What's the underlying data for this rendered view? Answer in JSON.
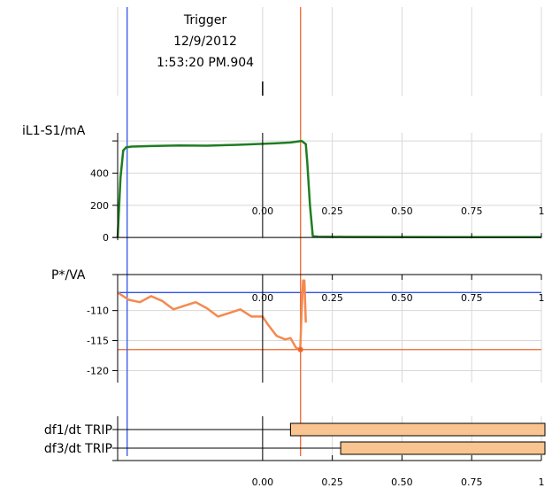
{
  "trigger": {
    "title": "Trigger",
    "date": "12/9/2012",
    "time": "1:53:20 PM.904"
  },
  "colors": {
    "cursor_blue": "#2f55e6",
    "cursor_orange": "#f0642a",
    "current_trace": "#1f7d22",
    "power_trace": "#f4894e",
    "trip_fill": "#f9c48f",
    "grid": "#d8d8d8"
  },
  "chart_data": [
    {
      "type": "line",
      "ylabel": "iL1-S1/mA",
      "xlim": [
        -0.52,
        1.0
      ],
      "ylim": [
        -10,
        650
      ],
      "yticks": [
        0,
        200,
        400
      ],
      "xticks": [
        "0.00",
        "0.25",
        "0.50",
        "0.75",
        "1"
      ],
      "grid": true,
      "series": [
        {
          "x": [
            -0.52,
            -0.51,
            -0.5,
            -0.49,
            -0.47,
            -0.4,
            -0.3,
            -0.2,
            -0.1,
            0.0,
            0.05,
            0.1,
            0.14,
            0.155,
            0.16,
            0.17,
            0.18,
            0.2,
            0.3,
            0.5,
            0.75,
            1.0
          ],
          "y": [
            0,
            370,
            540,
            560,
            565,
            568,
            572,
            570,
            575,
            582,
            585,
            590,
            600,
            580,
            470,
            200,
            8,
            5,
            4,
            3,
            2,
            2
          ]
        }
      ]
    },
    {
      "type": "line",
      "ylabel": "P*/VA",
      "xlim": [
        -0.52,
        1.0
      ],
      "ylim": [
        -122,
        -104
      ],
      "yticks": [
        -110,
        -115,
        -120
      ],
      "xticks": [
        "0.00",
        "0.25",
        "0.50",
        "0.75",
        "1"
      ],
      "grid": true,
      "cursor_levels": [
        -107.0,
        -116.5
      ],
      "series": [
        {
          "x": [
            -0.52,
            -0.48,
            -0.44,
            -0.4,
            -0.36,
            -0.32,
            -0.28,
            -0.24,
            -0.2,
            -0.16,
            -0.12,
            -0.08,
            -0.04,
            0.0,
            0.02,
            0.05,
            0.08,
            0.1,
            0.12,
            0.135,
            0.14,
            0.145,
            0.15,
            0.155
          ],
          "y": [
            -107.0,
            -108.2,
            -108.6,
            -107.6,
            -108.4,
            -109.8,
            -109.2,
            -108.6,
            -109.6,
            -111.0,
            -110.4,
            -109.8,
            -111.0,
            -111.0,
            -112.4,
            -114.2,
            -114.8,
            -114.6,
            -116.2,
            -116.5,
            -110.0,
            -105.0,
            -105.0,
            -112.0
          ]
        }
      ]
    },
    {
      "type": "bar",
      "xlim": [
        -0.52,
        1.0
      ],
      "xticks": [
        "0.00",
        "0.25",
        "0.50",
        "0.75",
        "1"
      ],
      "categories": [
        "df1/dt TRIP",
        "df3/dt TRIP"
      ],
      "bars": [
        {
          "name": "df1/dt TRIP",
          "start": 0.1,
          "end": 1.0
        },
        {
          "name": "df3/dt TRIP",
          "start": 0.28,
          "end": 1.0
        }
      ]
    }
  ]
}
